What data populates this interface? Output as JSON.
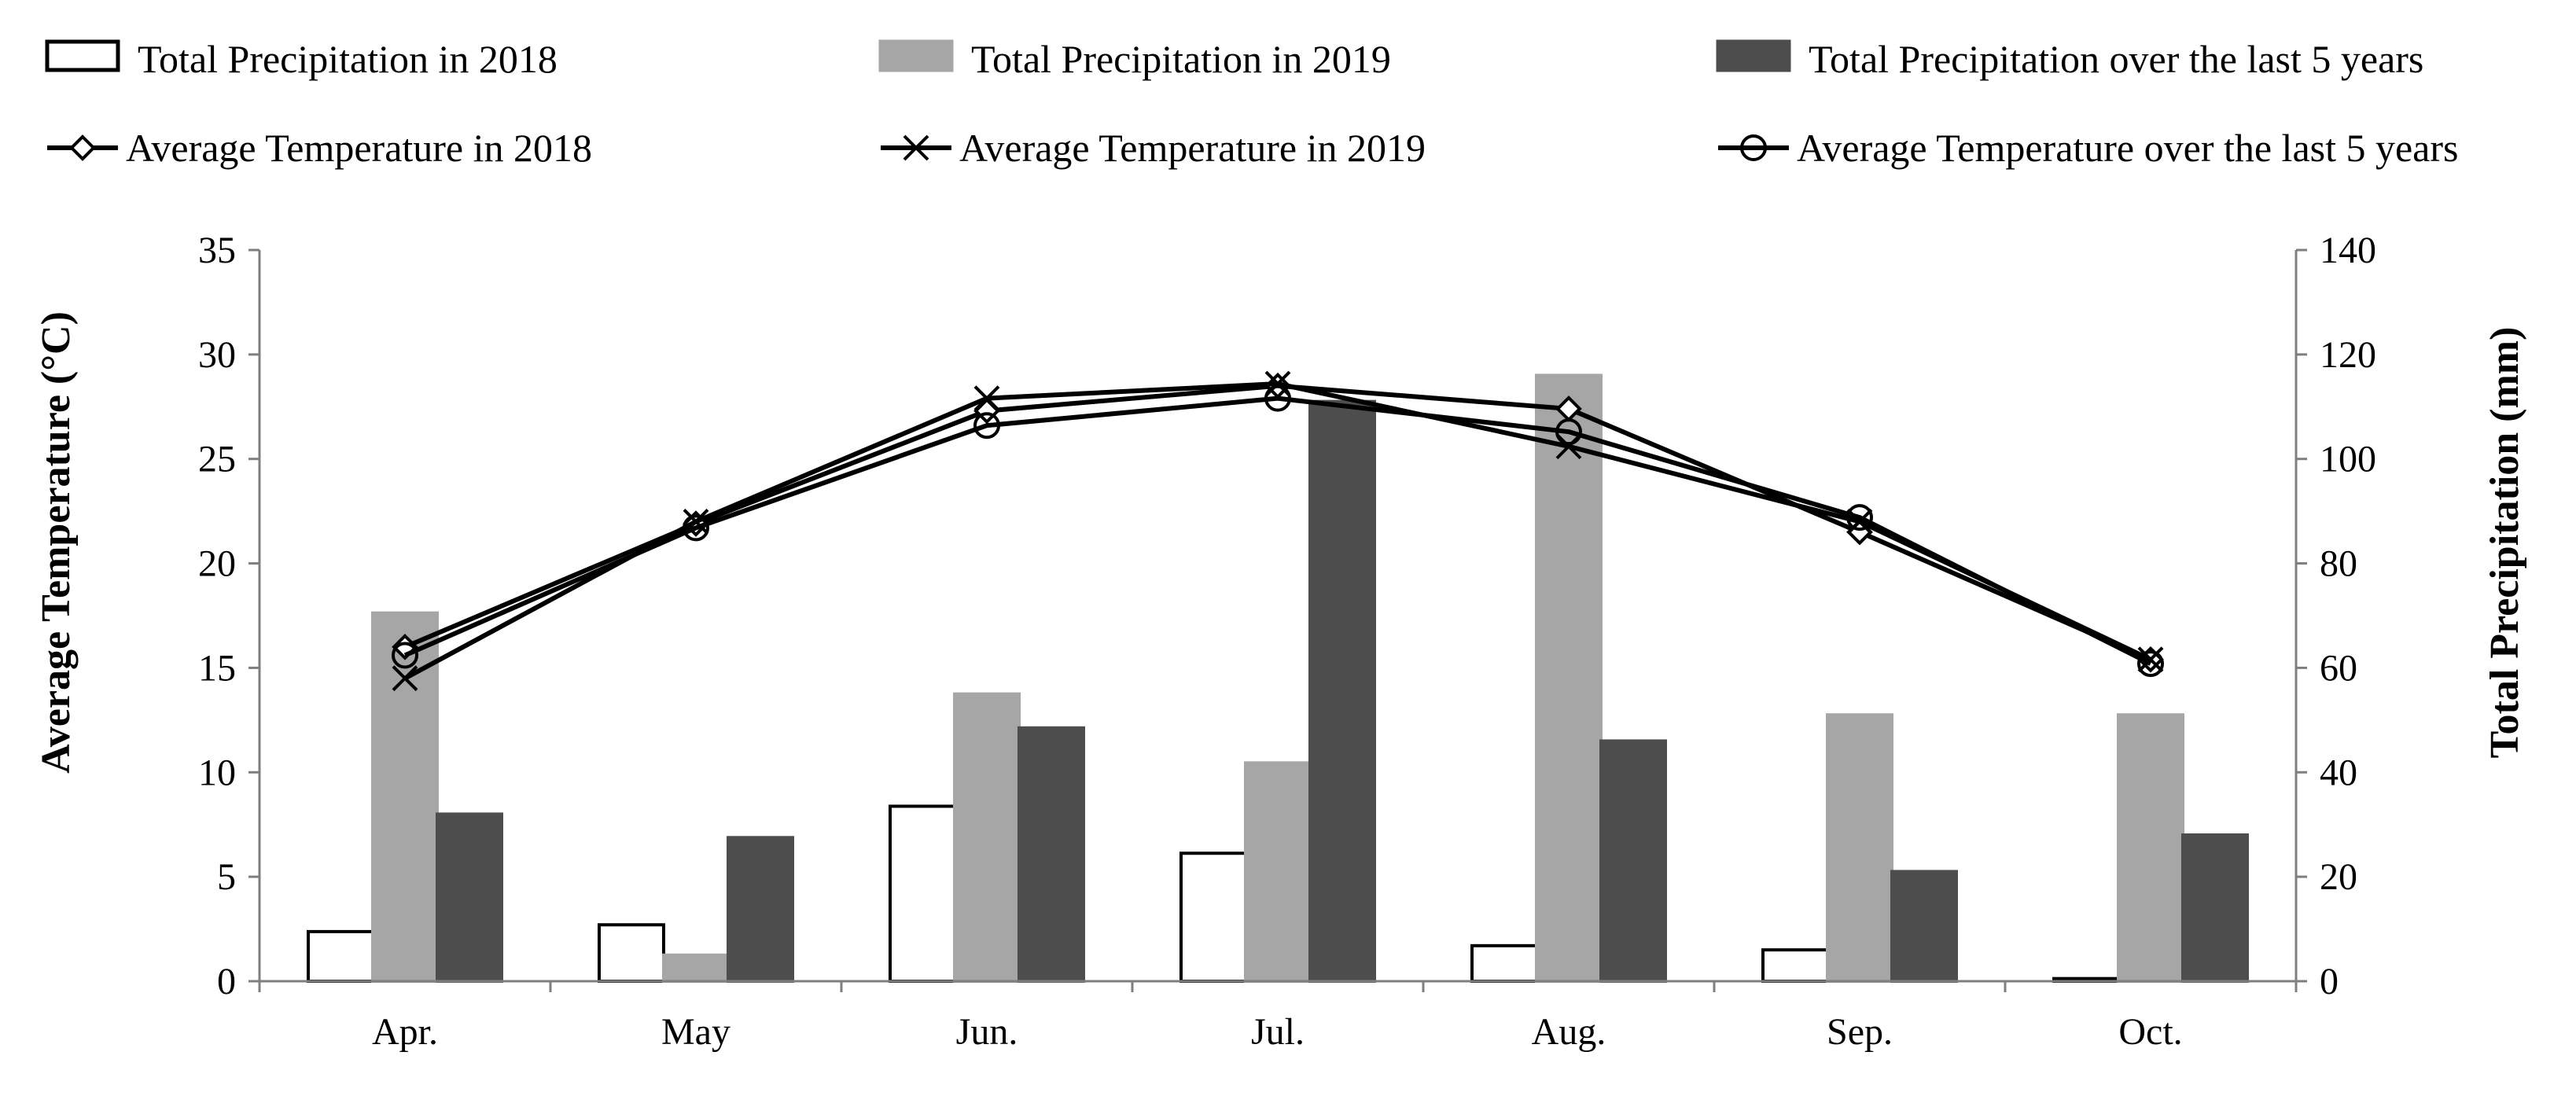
{
  "legend": {
    "items": [
      {
        "label": "Total Precipitation in 2018",
        "kind": "bar",
        "fill": "#ffffff",
        "stroke": "#000000"
      },
      {
        "label": "Total Precipitation in 2019",
        "kind": "bar",
        "fill": "#a6a6a6",
        "stroke": "#a6a6a6"
      },
      {
        "label": "Total Precipitation over the last 5 years",
        "kind": "bar",
        "fill": "#4d4d4d",
        "stroke": "#4d4d4d"
      },
      {
        "label": "Average Temperature in 2018",
        "kind": "line",
        "marker": "diamond"
      },
      {
        "label": "Average Temperature in 2019",
        "kind": "line",
        "marker": "x"
      },
      {
        "label": "Average Temperature over the last 5 years",
        "kind": "line",
        "marker": "circle"
      }
    ]
  },
  "chart_data": {
    "type": "bar",
    "categories": [
      "Apr.",
      "May",
      "Jun.",
      "Jul.",
      "Aug.",
      "Sep.",
      "Oct."
    ],
    "left_axis": {
      "label": "Average Temperature  (°C)",
      "ylim": [
        0,
        35
      ],
      "ticks": [
        0,
        5,
        10,
        15,
        20,
        25,
        30,
        35
      ]
    },
    "right_axis": {
      "label": "Total  Precipitation (mm)",
      "ylim": [
        0,
        140
      ],
      "ticks": [
        0,
        20,
        40,
        60,
        80,
        100,
        120,
        140
      ]
    },
    "bar_series": [
      {
        "name": "Total Precipitation in 2018",
        "axis": "right",
        "values": [
          9.5,
          10.8,
          33.5,
          24.5,
          6.8,
          6.0,
          0.5
        ],
        "fill": "#ffffff",
        "stroke": "#000000"
      },
      {
        "name": "Total Precipitation in 2019",
        "axis": "right",
        "values": [
          70.5,
          5.0,
          55.0,
          41.8,
          116.0,
          51.0,
          51.0
        ],
        "fill": "#a6a6a6",
        "stroke": "#a6a6a6"
      },
      {
        "name": "Total Precipitation over the last 5 years",
        "axis": "right",
        "values": [
          32.0,
          27.5,
          48.5,
          111.0,
          46.0,
          21.0,
          28.0
        ],
        "fill": "#4d4d4d",
        "stroke": "#4d4d4d"
      }
    ],
    "line_series": [
      {
        "name": "Average Temperature in 2018",
        "axis": "left",
        "marker": "diamond",
        "values": [
          16.0,
          21.9,
          27.3,
          28.5,
          27.4,
          21.5,
          15.4
        ]
      },
      {
        "name": "Average Temperature in 2019",
        "axis": "left",
        "marker": "x",
        "values": [
          14.5,
          22.0,
          27.9,
          28.6,
          25.6,
          22.0,
          15.4
        ]
      },
      {
        "name": "Average Temperature over the last 5 years",
        "axis": "left",
        "marker": "circle",
        "values": [
          15.6,
          21.7,
          26.6,
          27.9,
          26.3,
          22.2,
          15.2
        ]
      }
    ],
    "grid": false,
    "legend_position": "top"
  }
}
